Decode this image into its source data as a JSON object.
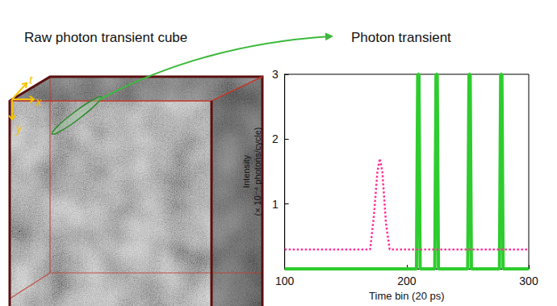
{
  "cube_title": "Raw photon transient cube",
  "cube_axes": [
    "t",
    "x",
    "y"
  ],
  "chart_data": {
    "type": "line",
    "title": "Photon transient",
    "xlabel": "Time bin (20 ps)",
    "ylabel": "Intensity\n(× 10⁻⁴ photons/cycle)",
    "xlim": [
      100,
      300
    ],
    "xticks": [
      100,
      200,
      300
    ],
    "ylim": [
      0,
      3
    ],
    "yticks": [
      1,
      2,
      3
    ],
    "grid": false,
    "series": [
      {
        "color": "#ff3399",
        "line_style": "dotted",
        "x": [
          100,
          170,
          173,
          176,
          178,
          180,
          183,
          186,
          300
        ],
        "values": [
          0.3,
          0.3,
          0.8,
          1.5,
          1.7,
          1.5,
          0.7,
          0.3,
          0.3
        ]
      },
      {
        "color": "#2ecc2e",
        "line_style": "solid",
        "x": [
          100,
          208,
          209,
          210,
          211,
          223,
          224,
          225,
          226,
          250,
          251,
          252,
          253,
          276,
          277,
          278,
          279,
          300
        ],
        "values": [
          0,
          0,
          3,
          3,
          0,
          0,
          3,
          3,
          0,
          0,
          3,
          3,
          0,
          0,
          3,
          3,
          0,
          0
        ]
      }
    ]
  }
}
